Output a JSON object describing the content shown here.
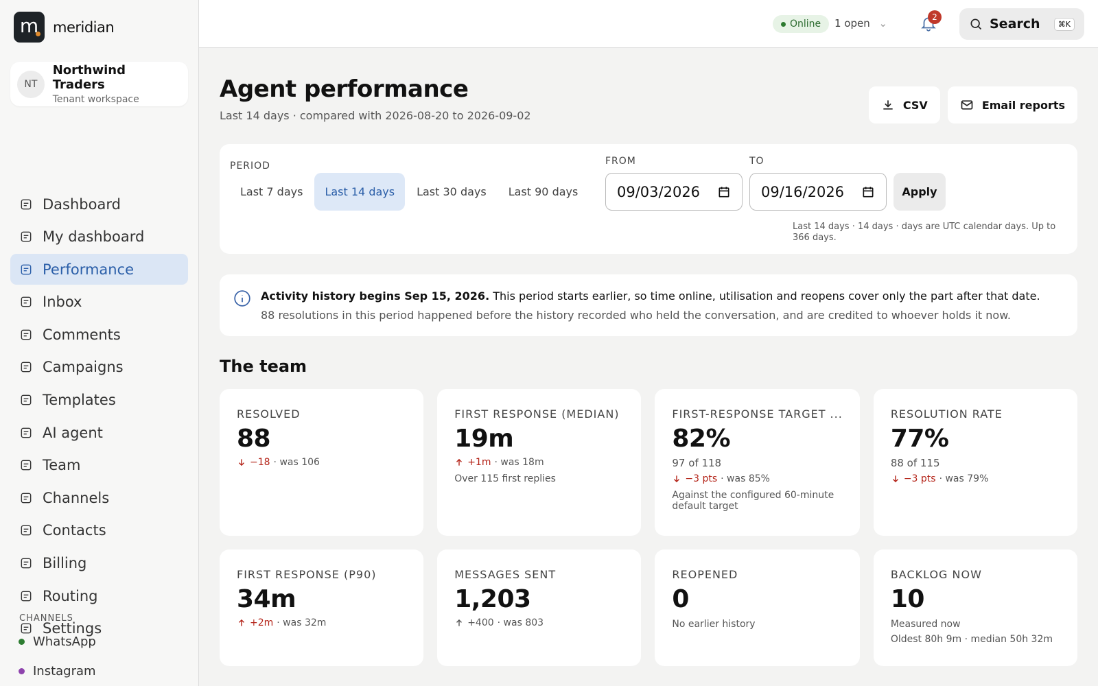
{
  "sidebar": {
    "logo_letter": "m",
    "brand": "meridian",
    "workspace": {
      "initials": "NT",
      "name": "Northwind Traders",
      "subtitle": "Tenant workspace"
    },
    "nav": [
      "Dashboard",
      "My dashboard",
      "Performance",
      "Inbox",
      "Comments",
      "Campaigns",
      "Templates",
      "AI agent",
      "Team",
      "Channels",
      "Contacts",
      "Billing",
      "Routing",
      "Settings"
    ],
    "channels_heading": "CHANNELS",
    "channels": [
      {
        "name": "WhatsApp",
        "color": "#2e7d32"
      },
      {
        "name": "Instagram",
        "color": "#8e44ad"
      }
    ]
  },
  "topbar": {
    "status": "Online",
    "open": "1 open",
    "notifications": "2",
    "search": "Search",
    "shortcut": "⌘K"
  },
  "header": {
    "title": "Agent performance",
    "subtitle": "Last 14 days · compared with 2026-08-20 to 2026-09-02",
    "actions": [
      "CSV",
      "Email reports"
    ]
  },
  "filters": {
    "period_label": "PERIOD",
    "periods": [
      "Last 7 days",
      "Last 14 days",
      "Last 30 days",
      "Last 90 days"
    ],
    "from_label": "FROM",
    "from": "09/03/2026",
    "to_label": "TO",
    "to": "09/16/2026",
    "apply": "Apply",
    "note": "Last 14 days · 14 days · days are UTC calendar days. Up to 366 days."
  },
  "notice": {
    "title": "Activity history begins Sep 15, 2026.",
    "text": "This period starts earlier, so time online, utilisation and reopens cover only the part after that date.",
    "detail": "88 resolutions in this period happened before the history recorded who held the conversation, and are credited to whoever holds it now."
  },
  "section_title": "The team",
  "cards": [
    {
      "label": "RESOLVED",
      "value": "88",
      "delta": {
        "text": "−18",
        "was": "· was 106",
        "color": "#b42318"
      }
    },
    {
      "label": "FIRST RESPONSE (MEDIAN)",
      "value": "19m",
      "delta": {
        "text": "+1m",
        "was": "· was 18m",
        "color": "#b42318"
      },
      "notes": [
        "Over 115 first replies"
      ]
    },
    {
      "label": "FIRST-RESPONSE TARGET ...",
      "value": "82%",
      "sub": "97 of 118",
      "delta": {
        "text": "−3 pts",
        "was": "· was 85%",
        "color": "#b42318"
      },
      "notes": [
        "Against the configured 60-minute default target"
      ]
    },
    {
      "label": "RESOLUTION RATE",
      "value": "77%",
      "sub": "88 of 115",
      "delta": {
        "text": "−3 pts",
        "was": "· was 79%",
        "color": "#b42318"
      }
    },
    {
      "label": "FIRST RESPONSE (P90)",
      "value": "34m",
      "delta": {
        "text": "+2m",
        "was": "· was 32m",
        "color": "#b42318"
      }
    },
    {
      "label": "MESSAGES SENT",
      "value": "1,203",
      "delta": {
        "text": "+400",
        "was": "· was 803",
        "color": "#555555"
      }
    },
    {
      "label": "REOPENED",
      "value": "0",
      "notes": [
        "No earlier history"
      ]
    },
    {
      "label": "BACKLOG NOW",
      "value": "10",
      "notes": [
        "Measured now",
        "Oldest 80h 9m · median 50h 32m"
      ]
    }
  ]
}
